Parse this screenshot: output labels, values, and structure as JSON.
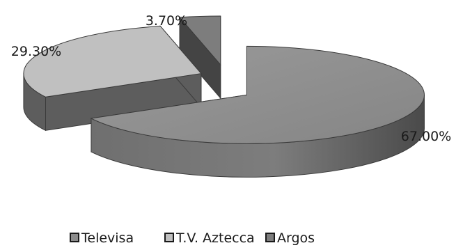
{
  "chart_data": {
    "type": "pie",
    "style": "3d-exploded",
    "categories": [
      "Televisa",
      "T.V. Aztecca",
      "Argos"
    ],
    "values": [
      67.0,
      29.3,
      3.7
    ],
    "labels": [
      "67.00%",
      "29.30%",
      "3.70%"
    ],
    "colors": [
      "#8c8c8c",
      "#c0c0c0",
      "#7d7d7d"
    ],
    "legend_position": "bottom"
  }
}
